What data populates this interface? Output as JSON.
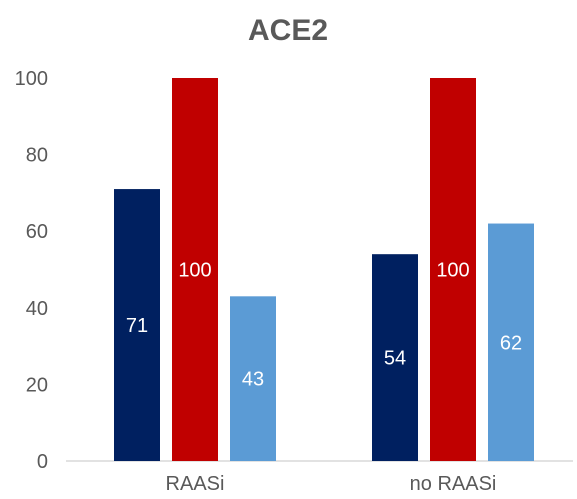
{
  "chart_data": {
    "type": "bar",
    "title": "ACE2",
    "categories": [
      "RAASi",
      "no RAASi"
    ],
    "series": [
      {
        "values": [
          71,
          54
        ],
        "color": "#002060"
      },
      {
        "values": [
          100,
          100
        ],
        "color": "#C00000"
      },
      {
        "values": [
          43,
          62
        ],
        "color": "#5B9BD5"
      }
    ],
    "yticks": [
      0,
      20,
      40,
      60,
      80,
      100
    ],
    "ylim": [
      0,
      100
    ],
    "grid": false,
    "legend": "none",
    "data_labels": true
  }
}
